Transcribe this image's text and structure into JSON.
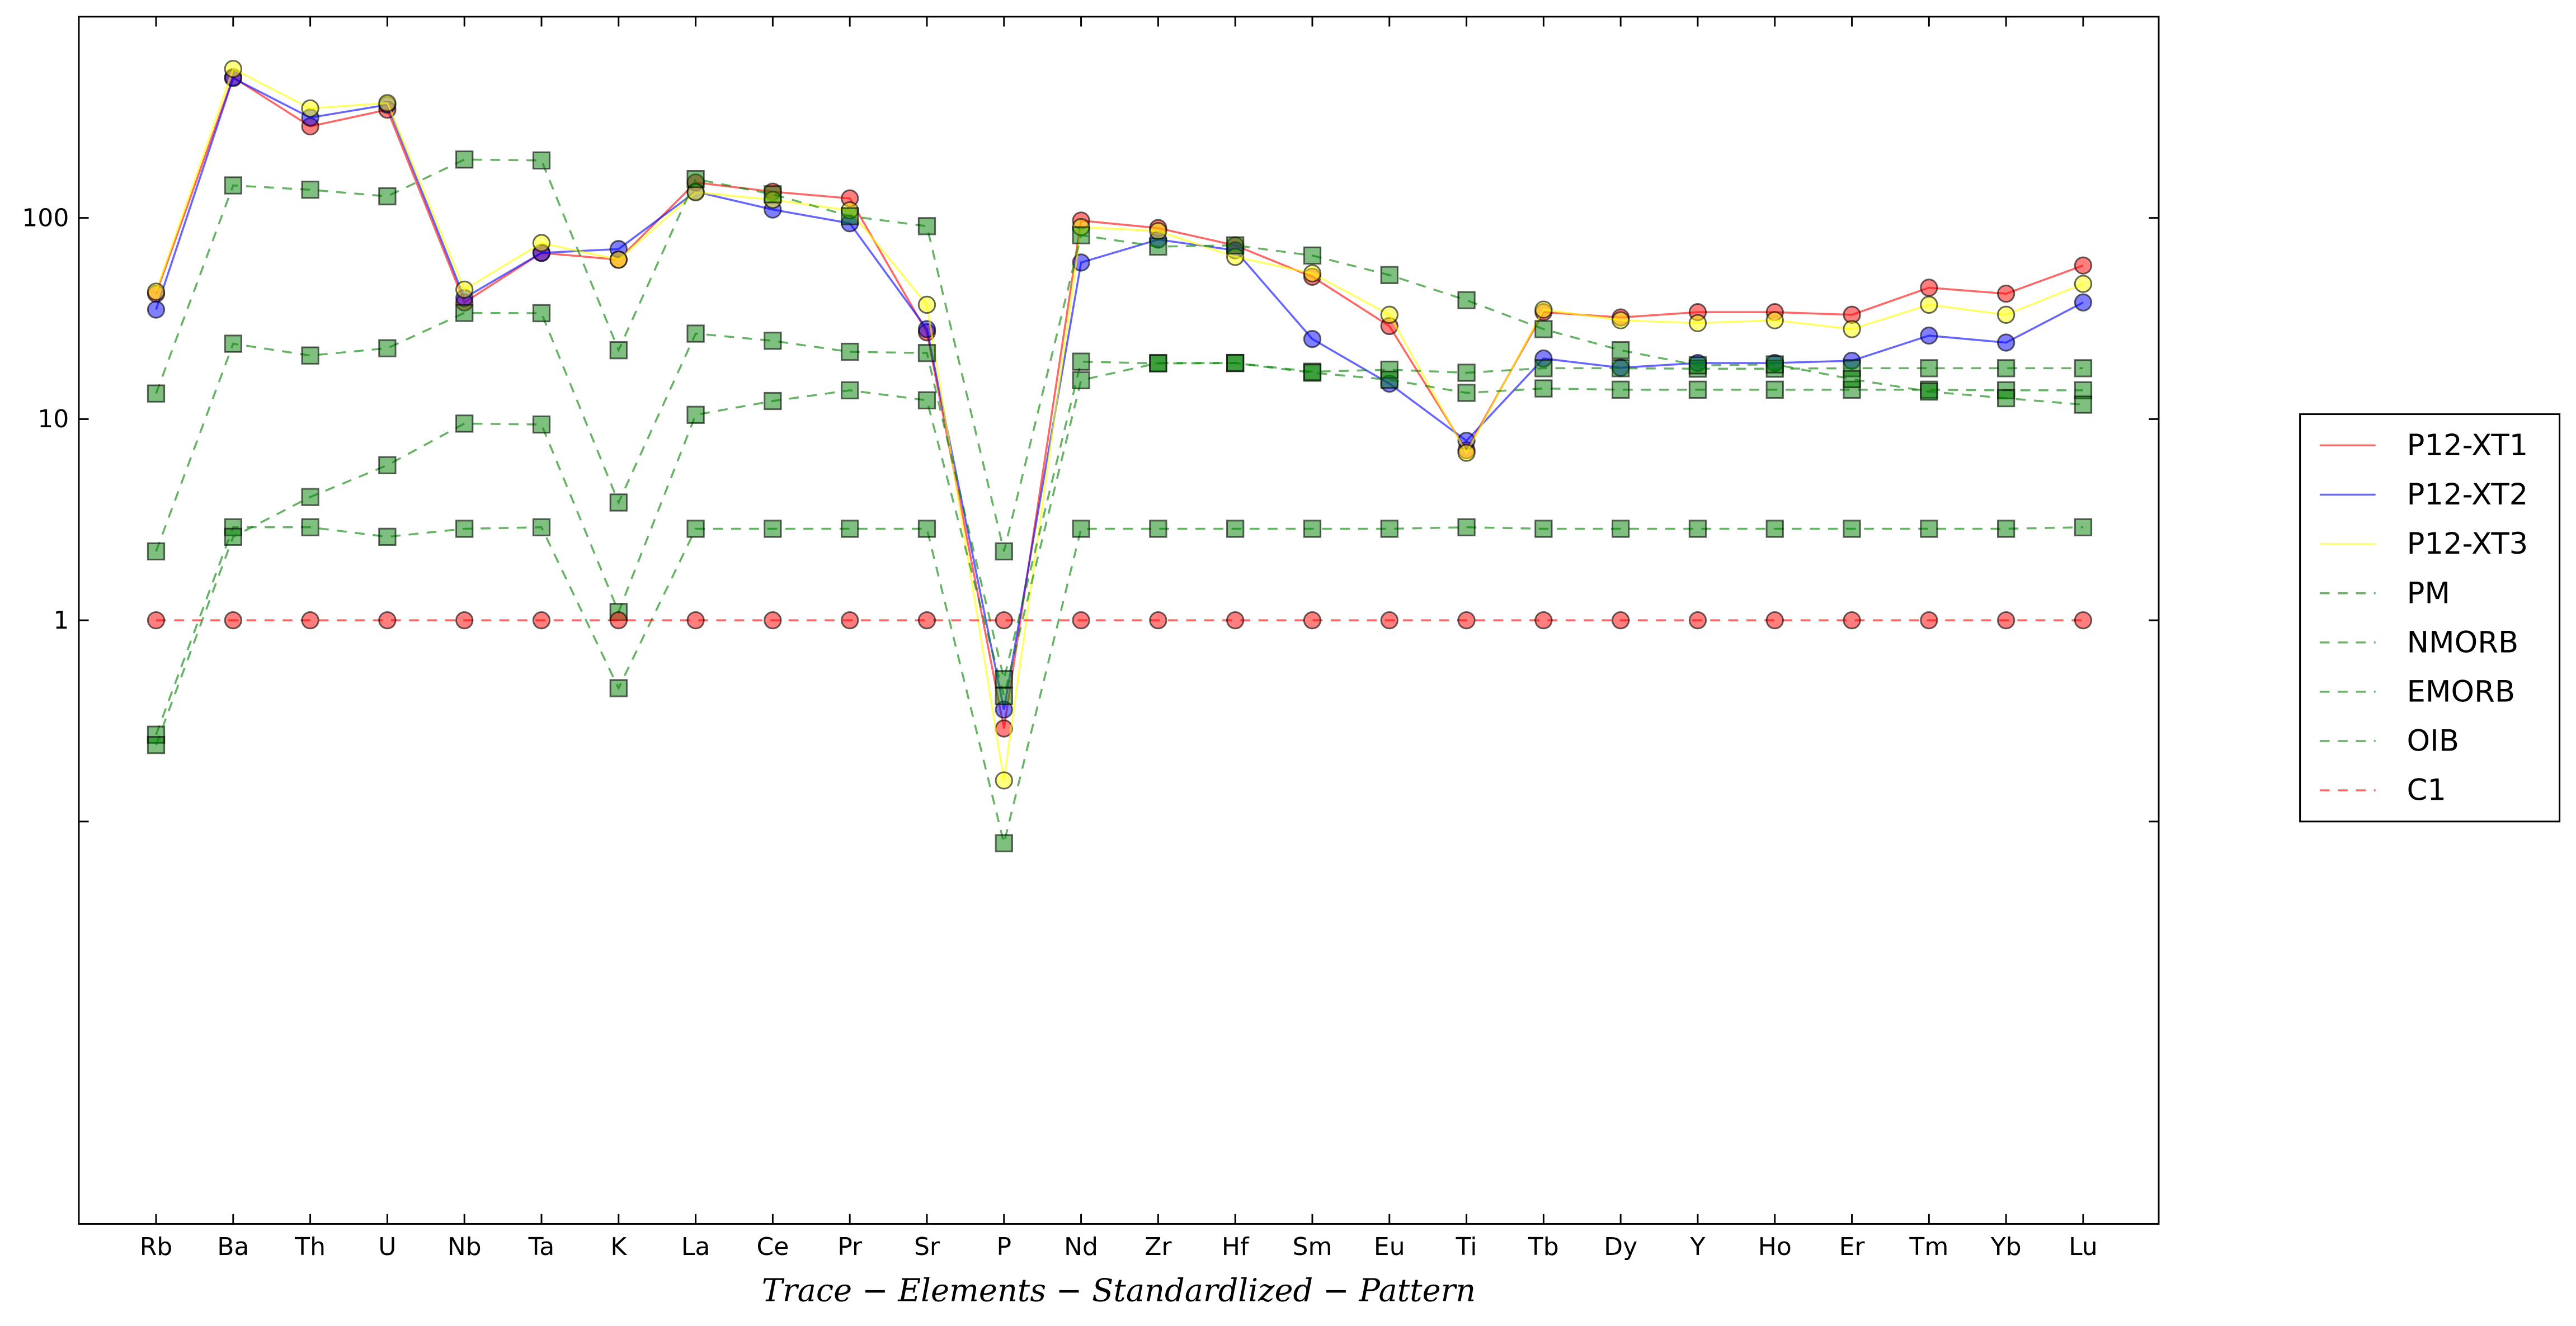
{
  "chart_data": {
    "type": "line",
    "x_label": "Trace − Elements − Standardlized − Pattern",
    "categories": [
      "Rb",
      "Ba",
      "Th",
      "U",
      "Nb",
      "Ta",
      "K",
      "La",
      "Ce",
      "Pr",
      "Sr",
      "P",
      "Nd",
      "Zr",
      "Hf",
      "Sm",
      "Eu",
      "Ti",
      "Tb",
      "Dy",
      "Y",
      "Ho",
      "Er",
      "Tm",
      "Yb",
      "Lu"
    ],
    "y_scale": "log",
    "ylim": [
      0.001,
      1000
    ],
    "yticks": [
      1,
      10,
      100
    ],
    "unlabeled_yticks": [
      0.1
    ],
    "legend": "outside right",
    "series": [
      {
        "name": "P12-XT1",
        "color": "#ff0000",
        "line_style": "solid",
        "marker": "circle",
        "values": [
          42,
          500,
          285,
          345,
          38,
          67,
          62,
          150,
          135,
          125,
          27,
          0.29,
          97,
          89,
          73,
          51,
          29,
          7,
          34,
          32,
          34,
          34,
          33,
          45,
          42,
          58
        ]
      },
      {
        "name": "P12-XT2",
        "color": "#0000ff",
        "line_style": "solid",
        "marker": "circle",
        "values": [
          35,
          495,
          315,
          365,
          40,
          67,
          70,
          135,
          110,
          94,
          28,
          0.36,
          60,
          78,
          69,
          25,
          15,
          7.8,
          20,
          18,
          19,
          19,
          19.5,
          26,
          24,
          38
        ]
      },
      {
        "name": "P12-XT3",
        "color": "#ffff00",
        "line_style": "solid",
        "marker": "circle",
        "values": [
          43,
          550,
          350,
          372,
          44,
          75,
          62,
          134,
          123,
          109,
          37,
          0.16,
          90,
          86,
          64,
          53,
          33,
          6.8,
          35,
          31,
          30,
          31,
          28,
          37,
          33,
          47
        ]
      },
      {
        "name": "PM",
        "color": "#008000",
        "line_style": "dashed",
        "marker": "square",
        "values": [
          0.27,
          2.9,
          2.9,
          2.6,
          2.85,
          2.9,
          0.46,
          2.85,
          2.85,
          2.85,
          2.85,
          0.078,
          2.85,
          2.85,
          2.85,
          2.85,
          2.85,
          2.9,
          2.85,
          2.85,
          2.85,
          2.85,
          2.85,
          2.85,
          2.85,
          2.9
        ]
      },
      {
        "name": "NMORB",
        "color": "#008000",
        "line_style": "dashed",
        "marker": "square",
        "values": [
          0.24,
          2.6,
          4.1,
          5.9,
          9.5,
          9.4,
          1.1,
          10.5,
          12.3,
          13.9,
          12.4,
          0.42,
          15.6,
          19,
          19,
          17.2,
          17.6,
          17,
          17.9,
          17.9,
          17.8,
          17.8,
          17.9,
          17.9,
          17.9,
          17.9
        ]
      },
      {
        "name": "EMORB",
        "color": "#008000",
        "line_style": "dashed",
        "marker": "square",
        "values": [
          2.2,
          23.7,
          20.7,
          22.5,
          33.7,
          33.6,
          3.85,
          26.6,
          24.5,
          21.6,
          21.3,
          0.51,
          19.3,
          18.9,
          19,
          17,
          15.7,
          13.5,
          14.2,
          14,
          14,
          14,
          14,
          14,
          13.9,
          13.9
        ]
      },
      {
        "name": "OIB",
        "color": "#008000",
        "line_style": "dashed",
        "marker": "square",
        "values": [
          13.4,
          145,
          138,
          128,
          195,
          193,
          22,
          156,
          131,
          102,
          91,
          2.2,
          82,
          72,
          73,
          65,
          52,
          39,
          28,
          22,
          18.5,
          18.7,
          15.8,
          13.7,
          12.7,
          11.8
        ]
      },
      {
        "name": "C1",
        "color": "#ff0000",
        "line_style": "dashed",
        "marker": "circle",
        "values": [
          1,
          1,
          1,
          1,
          1,
          1,
          1,
          1,
          1,
          1,
          1,
          1,
          1,
          1,
          1,
          1,
          1,
          1,
          1,
          1,
          1,
          1,
          1,
          1,
          1,
          1
        ]
      }
    ]
  }
}
